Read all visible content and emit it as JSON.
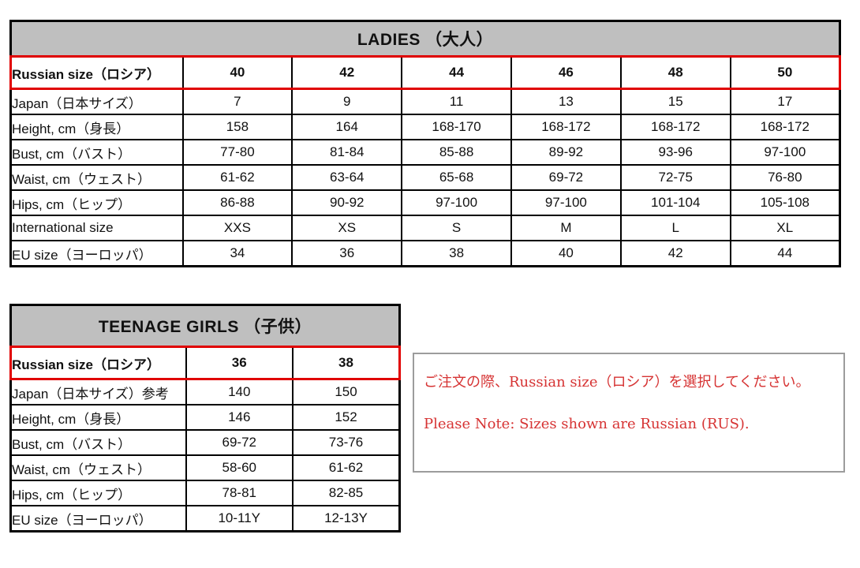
{
  "colors": {
    "table_border": "#000000",
    "header_bg": "#bfbfbf",
    "highlight_red": "#e00000",
    "note_text_red": "#d63333",
    "note_border_gray": "#9c9c9c"
  },
  "tables": {
    "ladies": {
      "title": "LADIES （大人）",
      "rows": [
        {
          "label": "Russian size（ロシア）",
          "values": [
            "40",
            "42",
            "44",
            "46",
            "48",
            "50"
          ],
          "highlight": true
        },
        {
          "label": "Japan（日本サイズ）",
          "values": [
            "7",
            "9",
            "11",
            "13",
            "15",
            "17"
          ]
        },
        {
          "label": "Height, cm（身長）",
          "values": [
            "158",
            "164",
            "168-170",
            "168-172",
            "168-172",
            "168-172"
          ]
        },
        {
          "label": "Bust, cm（バスト）",
          "values": [
            "77-80",
            "81-84",
            "85-88",
            "89-92",
            "93-96",
            "97-100"
          ]
        },
        {
          "label": "Waist, cm（ウェスト）",
          "values": [
            "61-62",
            "63-64",
            "65-68",
            "69-72",
            "72-75",
            "76-80"
          ]
        },
        {
          "label": "Hips, cm（ヒップ）",
          "values": [
            "86-88",
            "90-92",
            "97-100",
            "97-100",
            "101-104",
            "105-108"
          ]
        },
        {
          "label": "International size",
          "values": [
            "XXS",
            "XS",
            "S",
            "M",
            "L",
            "XL"
          ]
        },
        {
          "label": "EU size（ヨーロッパ）",
          "values": [
            "34",
            "36",
            "38",
            "40",
            "42",
            "44"
          ]
        }
      ]
    },
    "girls": {
      "title": "TEENAGE GIRLS （子供）",
      "rows": [
        {
          "label": "Russian size（ロシア）",
          "values": [
            "36",
            "38"
          ],
          "highlight": true
        },
        {
          "label": "Japan（日本サイズ）参考",
          "values": [
            "140",
            "150"
          ]
        },
        {
          "label": "Height, cm（身長）",
          "values": [
            "146",
            "152"
          ]
        },
        {
          "label": "Bust, cm（バスト）",
          "values": [
            "69-72",
            "73-76"
          ]
        },
        {
          "label": "Waist, cm（ウェスト）",
          "values": [
            "58-60",
            "61-62"
          ]
        },
        {
          "label": "Hips, cm（ヒップ）",
          "values": [
            "78-81",
            "82-85"
          ]
        },
        {
          "label": "EU size（ヨーロッパ）",
          "values": [
            "10-11Y",
            "12-13Y"
          ]
        }
      ]
    }
  },
  "note": {
    "line1": "ご注文の際、Russian size（ロシア）を選択してください。",
    "line2": "Please Note: Sizes shown are Russian (RUS)."
  }
}
